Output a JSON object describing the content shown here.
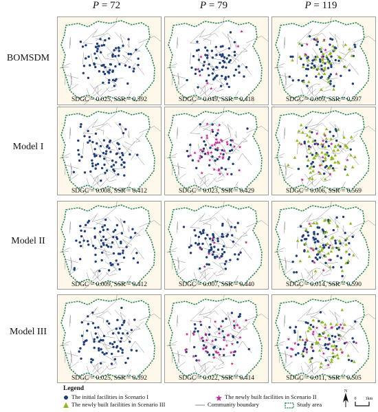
{
  "columns": [
    {
      "p_label": "P",
      "eq": " = ",
      "value": "72"
    },
    {
      "p_label": "P",
      "eq": " = ",
      "value": "79"
    },
    {
      "p_label": "P",
      "eq": " = ",
      "value": "119"
    }
  ],
  "rows": [
    {
      "label": "BOMSDM",
      "captions": [
        "SDGC = 0.025,    SSR = 0.392",
        "SDGC = 0.049,    SSR = 0.418",
        "SDGC = 0.009,    SSR = 0.597"
      ]
    },
    {
      "label": "Model I",
      "captions": [
        "SDGC = 0.008,    SSR = 0.412",
        "SDGC = 0.023,    SSR = 0.429",
        "SDGC = 0.006,    SSR = 0.569"
      ]
    },
    {
      "label": "Model II",
      "captions": [
        "SDGC = 0.009,    SSR = 0.412",
        "SDGC = 0.007,    SSR = 0.440",
        "SDGC = 0.014,    SSR = 0.590"
      ]
    },
    {
      "label": "Model III",
      "captions": [
        "SDGC = 0.025,    SSR = 0.392",
        "SDGC = 0.022,    SSR = 0.414",
        "SDGC = 0.011,    SSR = 0.505"
      ]
    }
  ],
  "legend": {
    "title": "Legend",
    "initial": "The initial facilities in Scenario I",
    "scenario2": "The newly built facilities in Scenario II",
    "scenario3": "The newly built facilities in Scenario III",
    "boundary": "Community  boundary",
    "study_area": "Study area"
  },
  "north_label": "N",
  "scale": {
    "zero": "0",
    "unit": "1km"
  },
  "colors": {
    "initial": "#1f3f7a",
    "scenario2": "#c8238f",
    "scenario3": "#8dbb1f",
    "study_boundary": "#2e8b57",
    "community": "#888888",
    "panel_bg": "#fdf8ea"
  }
}
